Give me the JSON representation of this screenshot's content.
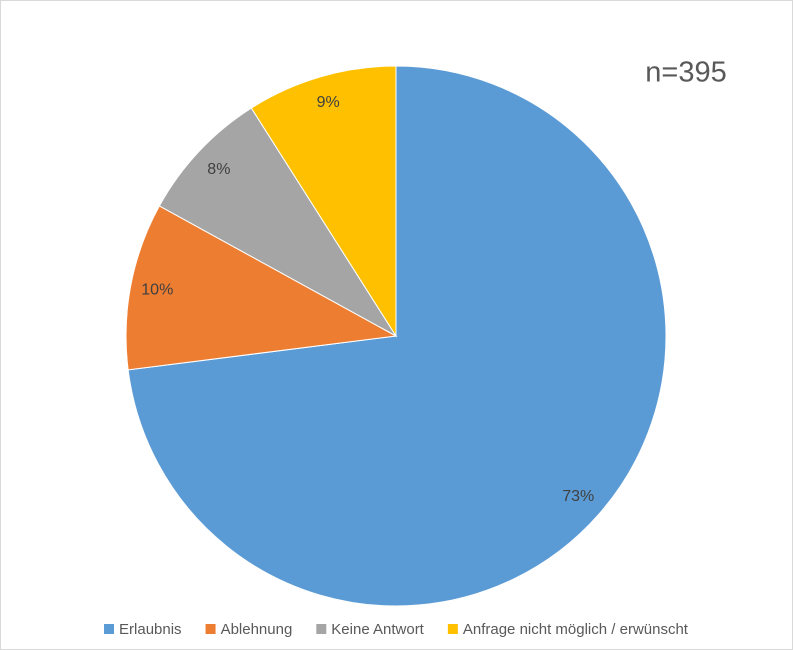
{
  "chart_data": {
    "type": "pie",
    "annotation": "n=395",
    "categories": [
      "Erlaubnis",
      "Ablehnung",
      "Keine Antwort",
      "Anfrage nicht möglich / erwünscht"
    ],
    "values": [
      73,
      10,
      8,
      9
    ],
    "value_labels": [
      "73%",
      "10%",
      "8%",
      "9%"
    ],
    "colors": [
      "#5b9bd5",
      "#ed7d31",
      "#a5a5a5",
      "#ffc000"
    ],
    "legend": "bottom"
  }
}
